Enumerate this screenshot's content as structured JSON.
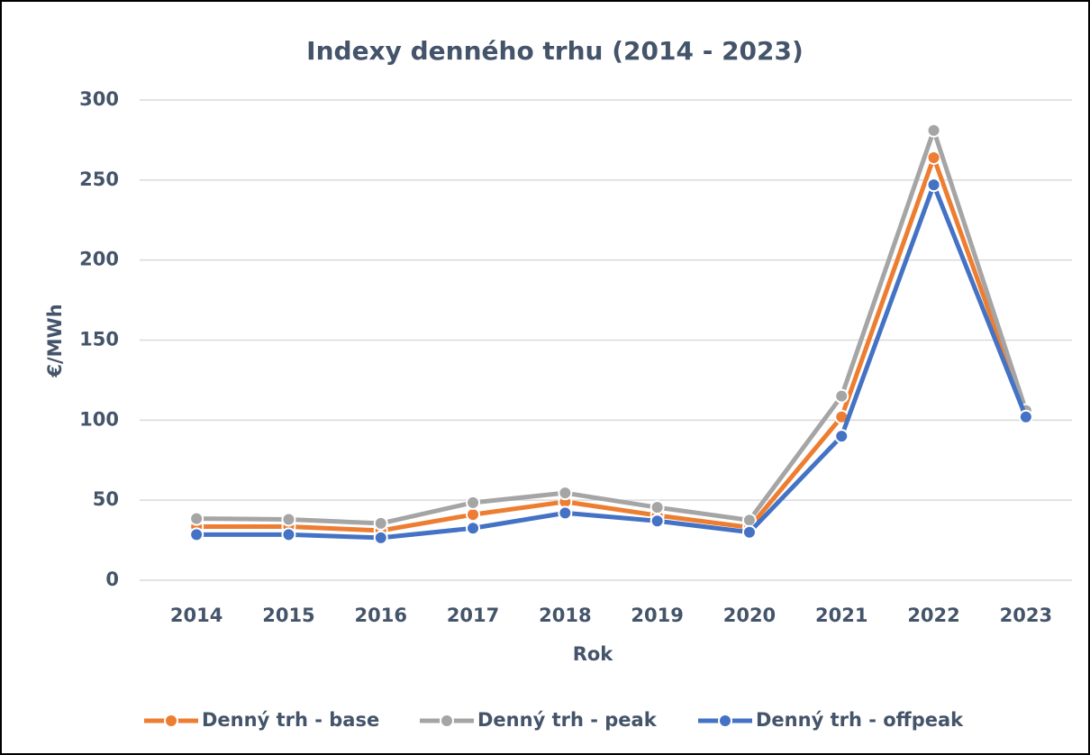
{
  "chart_data": {
    "type": "line",
    "title": "Indexy denného trhu (2014 - 2023)",
    "x_label": "Rok",
    "y_label": "€/MWh",
    "categories": [
      "2014",
      "2015",
      "2016",
      "2017",
      "2018",
      "2019",
      "2020",
      "2021",
      "2022",
      "2023"
    ],
    "series": [
      {
        "name": "Denný trh - base",
        "color": "#ed7d31",
        "values": [
          33.5,
          33.5,
          31,
          41,
          49,
          40.5,
          33,
          102,
          264,
          104
        ]
      },
      {
        "name": "Denný trh - peak",
        "color": "#a5a5a5",
        "values": [
          38.5,
          38,
          35.5,
          48.5,
          54.5,
          45.5,
          37.5,
          115,
          281,
          106
        ]
      },
      {
        "name": "Denný trh - offpeak",
        "color": "#4472c4",
        "values": [
          28.5,
          28.5,
          26.5,
          32.5,
          42,
          37,
          30,
          90,
          247,
          102
        ]
      }
    ],
    "ylim": [
      0,
      300
    ],
    "yticks": [
      0,
      50,
      100,
      150,
      200,
      250,
      300
    ],
    "grid": true,
    "legend": "bottom"
  }
}
